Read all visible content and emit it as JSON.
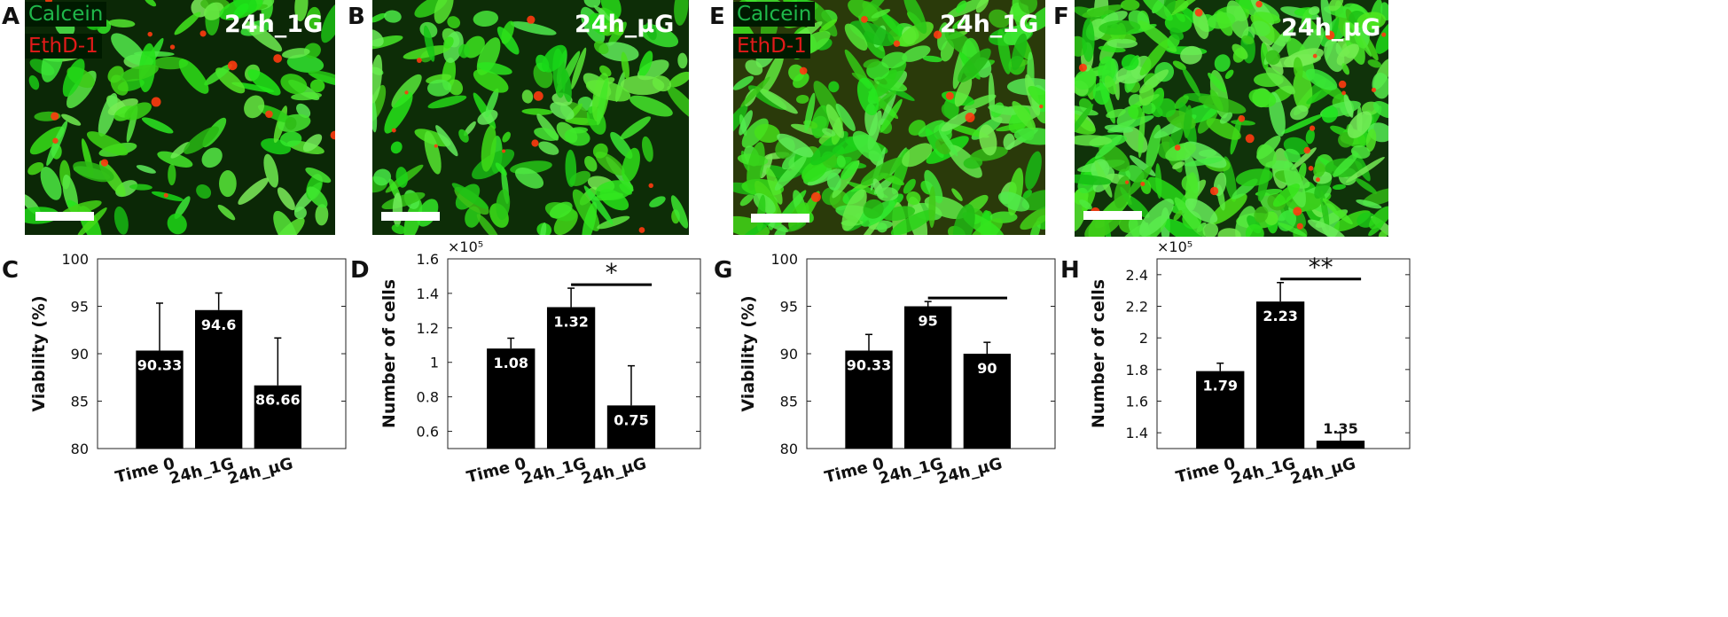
{
  "panels": {
    "A": {
      "letter": "A",
      "condition": "24h_1G",
      "legend": [
        "Calcein",
        "EthD-1"
      ]
    },
    "B": {
      "letter": "B",
      "condition": "24h_μG"
    },
    "E": {
      "letter": "E",
      "condition": "24h_1G",
      "legend": [
        "Calcein",
        "EthD-1"
      ]
    },
    "F": {
      "letter": "F",
      "condition": "24h_μG"
    },
    "C": {
      "letter": "C"
    },
    "D": {
      "letter": "D"
    },
    "G": {
      "letter": "G"
    },
    "H": {
      "letter": "H"
    }
  },
  "colors": {
    "calcein": "#1fb84a",
    "ethd1": "#e21a1a",
    "bar": "#000000",
    "cell_green": "#3ddc20",
    "cell_red": "#ff3a10"
  },
  "chart_data": [
    {
      "id": "C",
      "type": "bar",
      "categories": [
        "Time 0",
        "24h_1G",
        "24h_μG"
      ],
      "values": [
        90.33,
        94.6,
        86.66
      ],
      "value_labels": [
        "90.33",
        "94.6",
        "86.66"
      ],
      "errors": [
        5.0,
        1.8,
        5.0
      ],
      "ylabel": "Viability (%)",
      "ylim": [
        80,
        100
      ],
      "yticks": [
        "80",
        "85",
        "90",
        "95",
        "100"
      ],
      "exponent": "",
      "significance": null
    },
    {
      "id": "D",
      "type": "bar",
      "categories": [
        "Time 0",
        "24h_1G",
        "24h_μG"
      ],
      "values": [
        1.08,
        1.32,
        0.75
      ],
      "value_labels": [
        "1.08",
        "1.32",
        "0.75"
      ],
      "errors": [
        0.06,
        0.11,
        0.23
      ],
      "ylabel": "Number of cells",
      "ylim": [
        0.5,
        1.6
      ],
      "yticks": [
        "0.6",
        "0.8",
        "1",
        "1.2",
        "1.4",
        "1.6"
      ],
      "exponent": "×10⁵",
      "significance": {
        "from": 1,
        "to": 2,
        "mark": "*"
      }
    },
    {
      "id": "G",
      "type": "bar",
      "categories": [
        "Time 0",
        "24h_1G",
        "24h_μG"
      ],
      "values": [
        90.33,
        95,
        90
      ],
      "value_labels": [
        "90.33",
        "95",
        "90"
      ],
      "errors": [
        1.7,
        0.5,
        1.2
      ],
      "ylabel": "Viability (%)",
      "ylim": [
        80,
        100
      ],
      "yticks": [
        "80",
        "85",
        "90",
        "95",
        "100"
      ],
      "exponent": "",
      "significance": {
        "from": 1,
        "to": 2,
        "mark": ""
      }
    },
    {
      "id": "H",
      "type": "bar",
      "categories": [
        "Time 0",
        "24h_1G",
        "24h_μG"
      ],
      "values": [
        1.79,
        2.23,
        1.35
      ],
      "value_labels": [
        "1.79",
        "2.23",
        "1.35"
      ],
      "errors": [
        0.05,
        0.12,
        0.05
      ],
      "ylabel": "Number of cells",
      "ylim": [
        1.3,
        2.5
      ],
      "yticks": [
        "1.4",
        "1.6",
        "1.8",
        "2",
        "2.2",
        "2.4"
      ],
      "exponent": "×10⁵",
      "significance": {
        "from": 1,
        "to": 2,
        "mark": "**"
      }
    }
  ]
}
